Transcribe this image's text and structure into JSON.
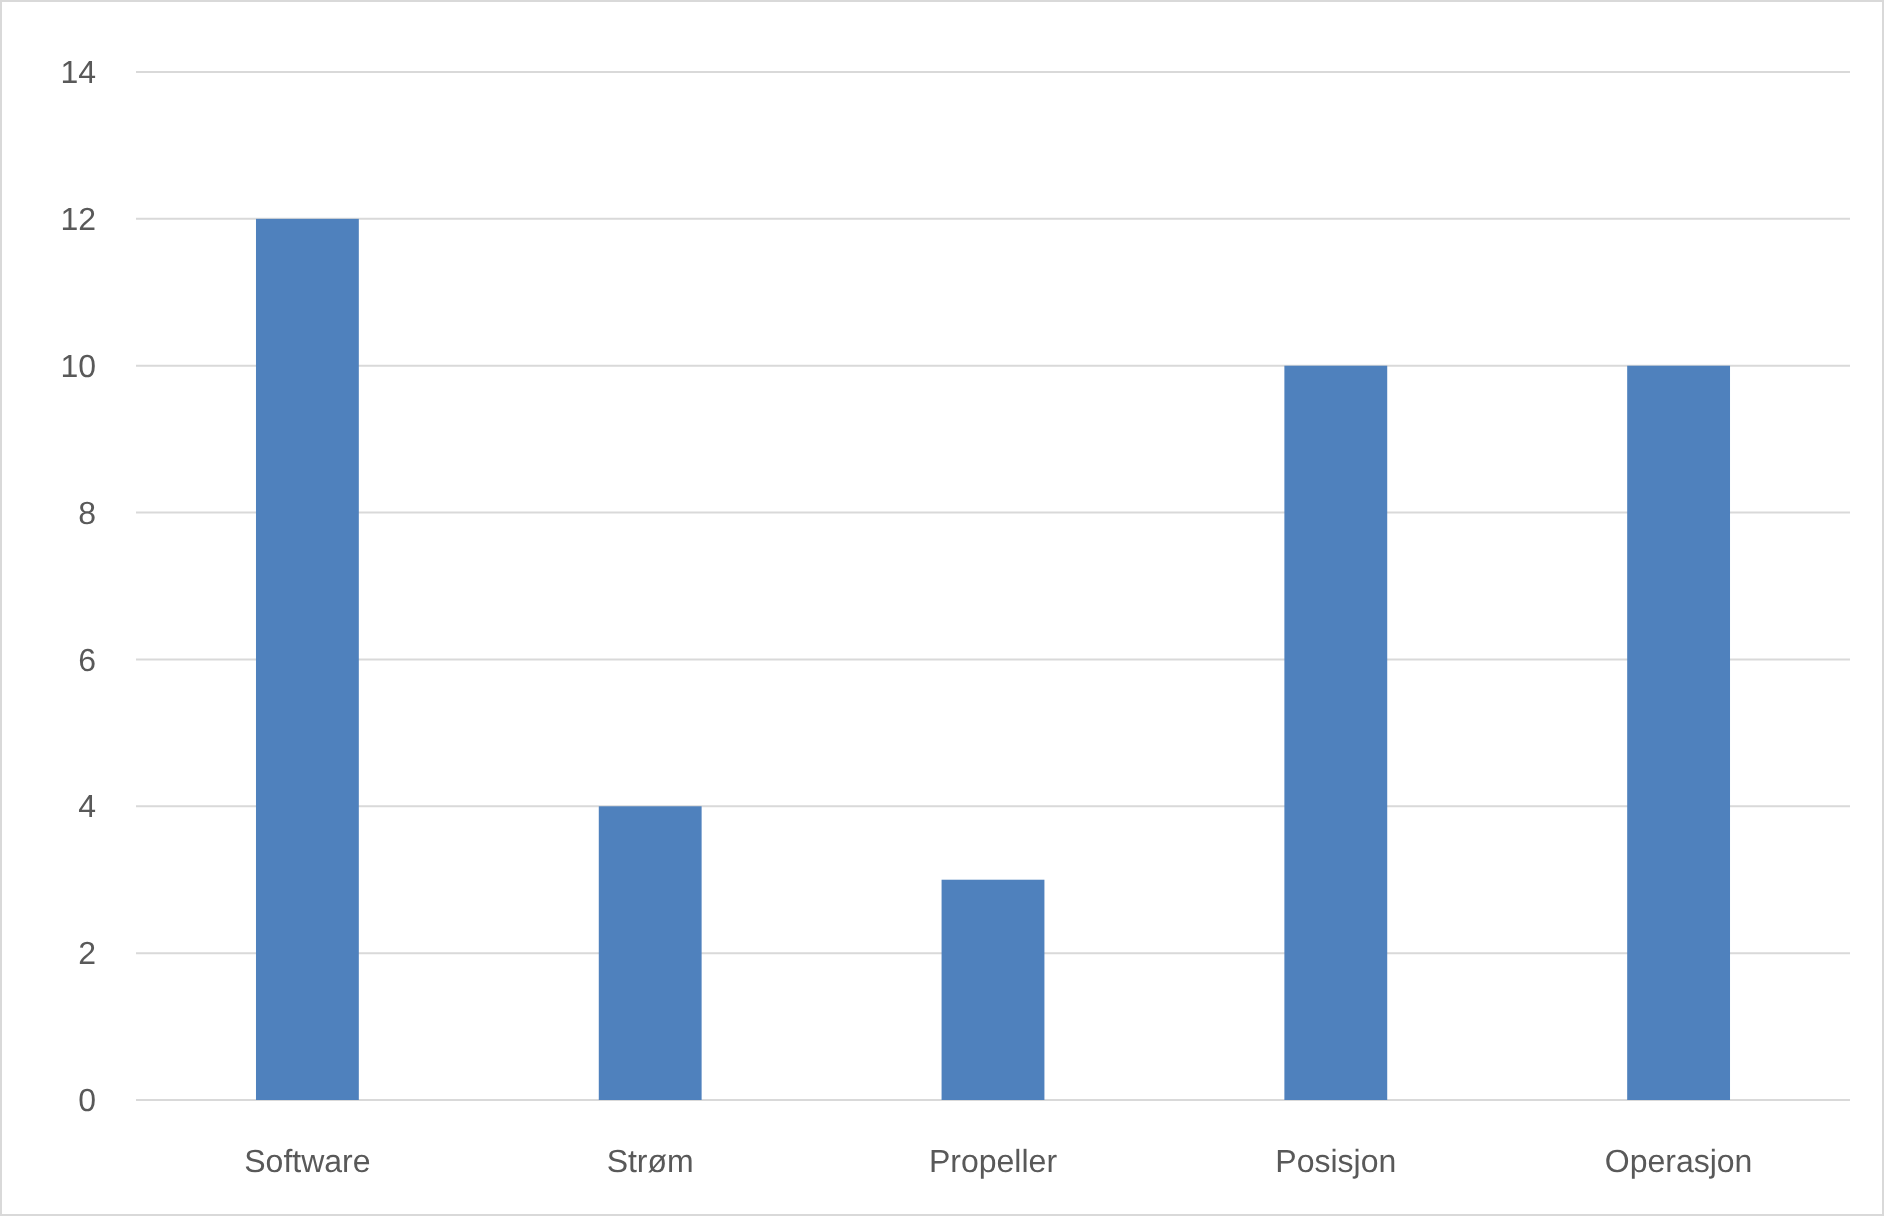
{
  "chart_data": {
    "type": "bar",
    "categories": [
      "Software",
      "Strøm",
      "Propeller",
      "Posisjon",
      "Operasjon"
    ],
    "values": [
      12,
      4,
      3,
      10,
      10
    ],
    "color": "#4f81bd",
    "ylim": [
      0,
      14
    ],
    "yticks": [
      0,
      2,
      4,
      6,
      8,
      10,
      12,
      14
    ],
    "grid": "y"
  }
}
